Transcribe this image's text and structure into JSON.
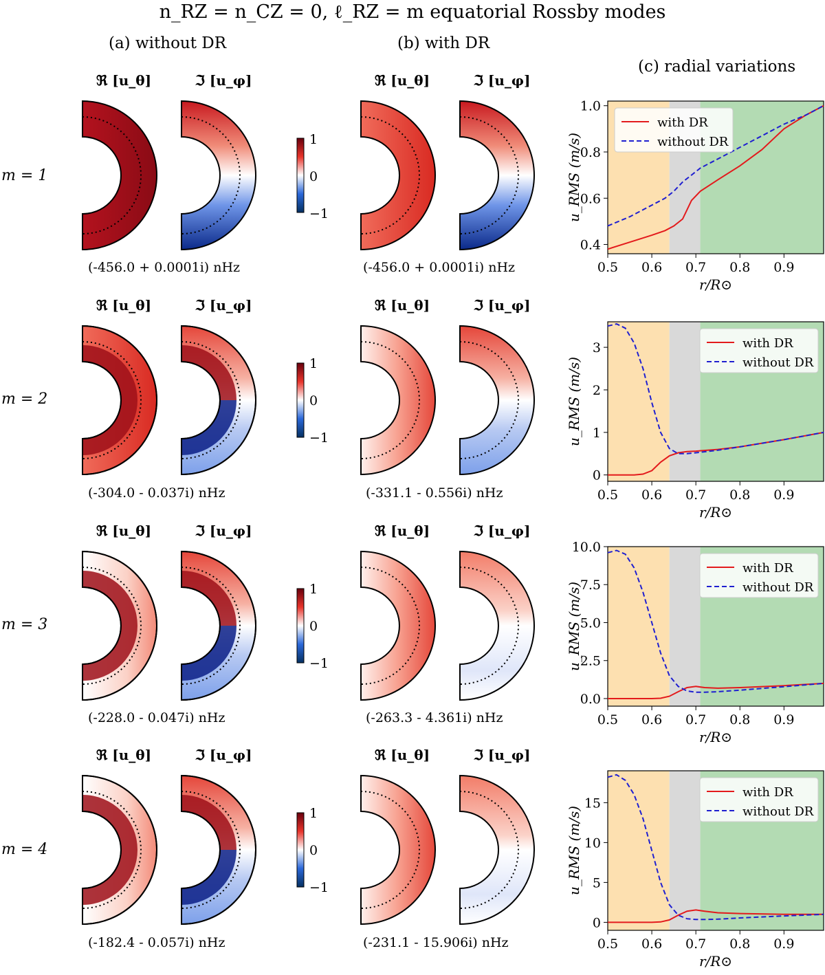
{
  "title": "n_RZ = n_CZ = 0, ℓ_RZ = m equatorial Rossby modes",
  "columns": {
    "a": "(a) without DR",
    "b": "(b) with DR",
    "c": "(c) radial variations"
  },
  "panel_labels": {
    "real": "ℜ [u_θ]",
    "imag": "ℑ [u_φ]"
  },
  "colorbar": {
    "ticks": [
      "1",
      "0",
      "−1"
    ],
    "colors": {
      "max": "#67000d",
      "mid": "#ffffff",
      "min": "#053061"
    }
  },
  "rows": [
    {
      "m_label": "m = 1",
      "freq_without": "(-456.0 + 0.0001i) nHz",
      "freq_with": "(-456.0 + 0.0001i) nHz"
    },
    {
      "m_label": "m = 2",
      "freq_without": "(-304.0 - 0.037i) nHz",
      "freq_with": "(-331.1 - 0.556i) nHz"
    },
    {
      "m_label": "m = 3",
      "freq_without": "(-228.0 - 0.047i) nHz",
      "freq_with": "(-263.3 - 4.361i) nHz"
    },
    {
      "m_label": "m = 4",
      "freq_without": "(-182.4 - 0.057i) nHz",
      "freq_with": "(-231.1 - 15.906i) nHz"
    }
  ],
  "region_colors": {
    "radiative": "#fde0b0",
    "tachocline": "#d9d9d9",
    "convective": "#b3dbb3"
  },
  "chart_data": [
    {
      "type": "line",
      "xlabel": "r/R⊙",
      "ylabel": "u_RMS (m/s)",
      "xlim": [
        0.5,
        0.99
      ],
      "ylim": [
        0.36,
        1.02
      ],
      "xticks": [
        0.5,
        0.6,
        0.7,
        0.8,
        0.9
      ],
      "xtick_labels": [
        "0.5",
        "0.6",
        "0.7",
        "0.8",
        "0.9"
      ],
      "yticks": [
        0.4,
        0.6,
        0.8,
        1.0
      ],
      "ytick_labels": [
        "0.4",
        "0.6",
        "0.8",
        "1.0"
      ],
      "regions": [
        [
          0.5,
          0.64
        ],
        [
          0.64,
          0.71
        ],
        [
          0.71,
          0.99
        ]
      ],
      "legend": "upper-left",
      "x": [
        0.5,
        0.55,
        0.6,
        0.63,
        0.65,
        0.67,
        0.69,
        0.71,
        0.75,
        0.8,
        0.85,
        0.9,
        0.95,
        0.99
      ],
      "series": [
        {
          "name": "with DR",
          "color": "#e31a1c",
          "dash": false,
          "values": [
            0.38,
            0.41,
            0.44,
            0.46,
            0.48,
            0.51,
            0.59,
            0.63,
            0.68,
            0.74,
            0.81,
            0.9,
            0.96,
            1.0
          ]
        },
        {
          "name": "without DR",
          "color": "#1f1fd0",
          "dash": true,
          "values": [
            0.48,
            0.52,
            0.57,
            0.6,
            0.63,
            0.67,
            0.7,
            0.73,
            0.77,
            0.82,
            0.87,
            0.92,
            0.96,
            1.0
          ]
        }
      ]
    },
    {
      "type": "line",
      "xlabel": "r/R⊙",
      "ylabel": "u_RMS (m/s)",
      "xlim": [
        0.5,
        0.99
      ],
      "ylim": [
        -0.15,
        3.6
      ],
      "xticks": [
        0.5,
        0.6,
        0.7,
        0.8,
        0.9
      ],
      "xtick_labels": [
        "0.5",
        "0.6",
        "0.7",
        "0.8",
        "0.9"
      ],
      "yticks": [
        0,
        1,
        2,
        3
      ],
      "ytick_labels": [
        "0",
        "1",
        "2",
        "3"
      ],
      "regions": [
        [
          0.5,
          0.64
        ],
        [
          0.64,
          0.71
        ],
        [
          0.71,
          0.99
        ]
      ],
      "legend": "upper-right",
      "x": [
        0.5,
        0.52,
        0.54,
        0.56,
        0.58,
        0.6,
        0.62,
        0.64,
        0.66,
        0.68,
        0.7,
        0.75,
        0.8,
        0.9,
        0.99
      ],
      "series": [
        {
          "name": "with DR",
          "color": "#e31a1c",
          "dash": false,
          "values": [
            0.0,
            0.0,
            0.0,
            0.0,
            0.02,
            0.1,
            0.3,
            0.45,
            0.52,
            0.55,
            0.56,
            0.6,
            0.66,
            0.83,
            1.0
          ]
        },
        {
          "name": "without DR",
          "color": "#1f1fd0",
          "dash": true,
          "values": [
            3.5,
            3.55,
            3.45,
            3.1,
            2.5,
            1.7,
            1.0,
            0.62,
            0.5,
            0.5,
            0.52,
            0.58,
            0.66,
            0.83,
            1.0
          ]
        }
      ]
    },
    {
      "type": "line",
      "xlabel": "r/R⊙",
      "ylabel": "u_RMS (m/s)",
      "xlim": [
        0.5,
        0.99
      ],
      "ylim": [
        -0.5,
        10.0
      ],
      "xticks": [
        0.5,
        0.6,
        0.7,
        0.8,
        0.9
      ],
      "xtick_labels": [
        "0.5",
        "0.6",
        "0.7",
        "0.8",
        "0.9"
      ],
      "yticks": [
        0,
        2.5,
        5,
        7.5,
        10
      ],
      "ytick_labels": [
        "0.0",
        "2.5",
        "5.0",
        "7.5",
        "10.0"
      ],
      "regions": [
        [
          0.5,
          0.64
        ],
        [
          0.64,
          0.71
        ],
        [
          0.71,
          0.99
        ]
      ],
      "legend": "upper-right",
      "x": [
        0.5,
        0.52,
        0.54,
        0.56,
        0.58,
        0.6,
        0.62,
        0.64,
        0.66,
        0.68,
        0.7,
        0.72,
        0.75,
        0.8,
        0.9,
        0.99
      ],
      "series": [
        {
          "name": "with DR",
          "color": "#e31a1c",
          "dash": false,
          "values": [
            0.0,
            0.0,
            0.0,
            0.0,
            0.0,
            0.0,
            0.02,
            0.15,
            0.45,
            0.72,
            0.8,
            0.72,
            0.68,
            0.72,
            0.85,
            1.0
          ]
        },
        {
          "name": "without DR",
          "color": "#1f1fd0",
          "dash": true,
          "values": [
            9.6,
            9.75,
            9.5,
            8.6,
            7.0,
            5.0,
            3.0,
            1.5,
            0.8,
            0.5,
            0.42,
            0.42,
            0.45,
            0.55,
            0.78,
            1.0
          ]
        }
      ]
    },
    {
      "type": "line",
      "xlabel": "r/R⊙",
      "ylabel": "u_RMS (m/s)",
      "xlim": [
        0.5,
        0.99
      ],
      "ylim": [
        -1.0,
        19.0
      ],
      "xticks": [
        0.5,
        0.6,
        0.7,
        0.8,
        0.9
      ],
      "xtick_labels": [
        "0.5",
        "0.6",
        "0.7",
        "0.8",
        "0.9"
      ],
      "yticks": [
        0,
        5,
        10,
        15
      ],
      "ytick_labels": [
        "0",
        "5",
        "10",
        "15"
      ],
      "regions": [
        [
          0.5,
          0.64
        ],
        [
          0.64,
          0.71
        ],
        [
          0.71,
          0.99
        ]
      ],
      "legend": "upper-right",
      "x": [
        0.5,
        0.52,
        0.54,
        0.56,
        0.58,
        0.6,
        0.62,
        0.64,
        0.66,
        0.68,
        0.7,
        0.72,
        0.75,
        0.8,
        0.9,
        0.99
      ],
      "series": [
        {
          "name": "with DR",
          "color": "#e31a1c",
          "dash": false,
          "values": [
            0.0,
            0.0,
            0.0,
            0.0,
            0.0,
            0.0,
            0.05,
            0.3,
            0.9,
            1.4,
            1.55,
            1.4,
            1.2,
            1.1,
            1.0,
            1.0
          ]
        },
        {
          "name": "without DR",
          "color": "#1f1fd0",
          "dash": true,
          "values": [
            18.2,
            18.5,
            17.8,
            16.0,
            13.0,
            9.0,
            5.0,
            2.2,
            0.9,
            0.45,
            0.35,
            0.35,
            0.4,
            0.55,
            0.8,
            1.0
          ]
        }
      ]
    }
  ]
}
